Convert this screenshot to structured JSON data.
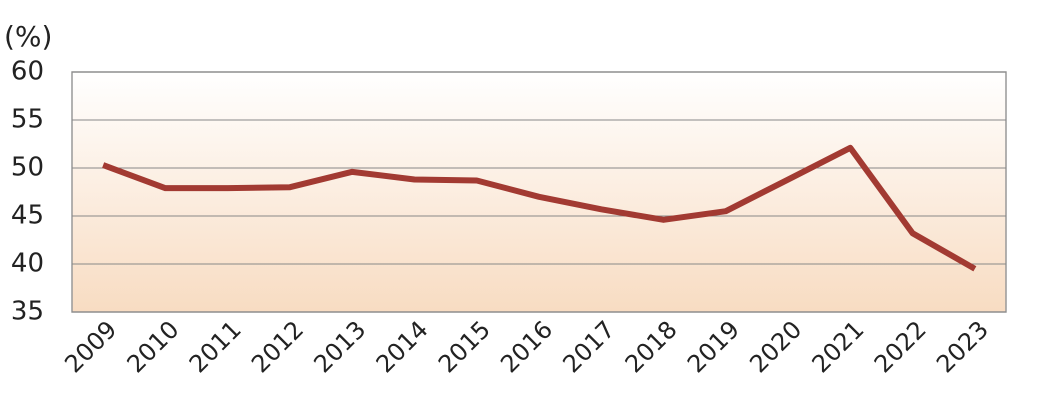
{
  "chart_data": {
    "type": "line",
    "y_label": "(%)",
    "categories": [
      "2009",
      "2010",
      "2011",
      "2012",
      "2013",
      "2014",
      "2015",
      "2016",
      "2017",
      "2018",
      "2019",
      "2020",
      "2021",
      "2022",
      "2023"
    ],
    "values": [
      50.3,
      47.9,
      47.9,
      48.0,
      49.6,
      48.8,
      48.7,
      47.0,
      45.7,
      44.6,
      45.5,
      48.8,
      52.1,
      43.2,
      39.5
    ],
    "color": "#a23a32",
    "ylim": [
      35,
      60
    ],
    "yticks": [
      35,
      40,
      45,
      50,
      55,
      60
    ],
    "grid": true
  }
}
